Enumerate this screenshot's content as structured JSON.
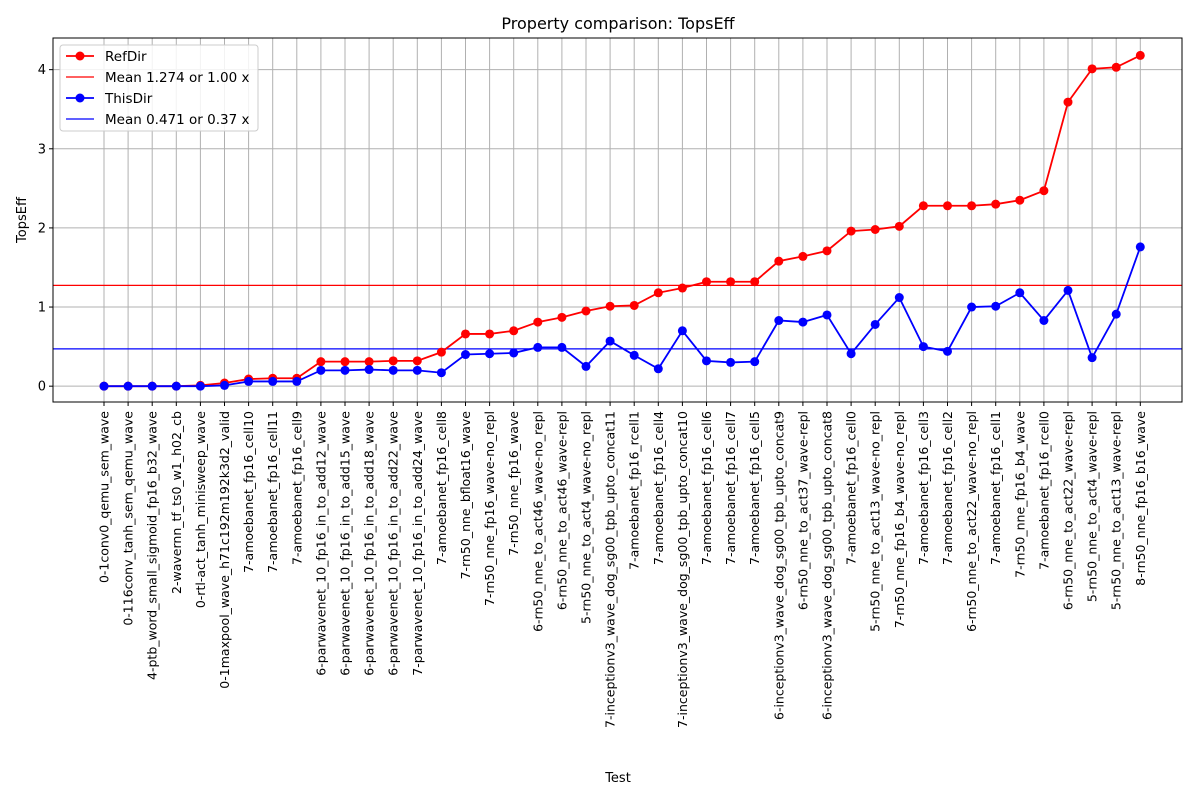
{
  "chart_data": {
    "type": "line",
    "title": "Property comparison:  TopsEff",
    "xlabel": "Test",
    "ylabel": "TopsEff",
    "ylim": [
      -0.2,
      4.4
    ],
    "yticks": [
      0,
      1,
      2,
      3,
      4
    ],
    "grid": true,
    "legend_position": "top-left",
    "categories": [
      "0-1conv0_qemu_sem_wave",
      "0-116conv_tanh_sem_qemu_wave",
      "4-ptb_word_small_sigmoid_fp16_b32_wave",
      "2-wavernn_tf_ts0_w1_h02_cb",
      "0-rtl-act_tanh_minisweep_wave",
      "0-1maxpool_wave_h71c192m192k3d2_valid",
      "7-amoebanet_fp16_cell10",
      "7-amoebanet_fp16_cell11",
      "7-amoebanet_fp16_cell9",
      "6-parwavenet_10_fp16_in_to_add12_wave",
      "6-parwavenet_10_fp16_in_to_add15_wave",
      "6-parwavenet_10_fp16_in_to_add18_wave",
      "6-parwavenet_10_fp16_in_to_add22_wave",
      "7-parwavenet_10_fp16_in_to_add24_wave",
      "7-amoebanet_fp16_cell8",
      "7-rn50_nne_bfloat16_wave",
      "7-rn50_nne_fp16_wave-no_repl",
      "7-rn50_nne_fp16_wave",
      "6-rn50_nne_to_act46_wave-no_repl",
      "6-rn50_nne_to_act46_wave-repl",
      "5-rn50_nne_to_act4_wave-no_repl",
      "7-inceptionv3_wave_dog_sg00_tpb_upto_concat11",
      "7-amoebanet_fp16_rcell1",
      "7-amoebanet_fp16_cell4",
      "7-inceptionv3_wave_dog_sg00_tpb_upto_concat10",
      "7-amoebanet_fp16_cell6",
      "7-amoebanet_fp16_cell7",
      "7-amoebanet_fp16_cell5",
      "6-inceptionv3_wave_dog_sg00_tpb_upto_concat9",
      "6-rn50_nne_to_act37_wave-repl",
      "6-inceptionv3_wave_dog_sg00_tpb_upto_concat8",
      "7-amoebanet_fp16_cell0",
      "5-rn50_nne_to_act13_wave-no_repl",
      "7-rn50_nne_fp16_b4_wave-no_repl",
      "7-amoebanet_fp16_cell3",
      "7-amoebanet_fp16_cell2",
      "6-rn50_nne_to_act22_wave-no_repl",
      "7-amoebanet_fp16_cell1",
      "7-rn50_nne_fp16_b4_wave",
      "7-amoebanet_fp16_rcell0",
      "6-rn50_nne_to_act22_wave-repl",
      "5-rn50_nne_to_act4_wave-repl",
      "5-rn50_nne_to_act13_wave-repl",
      "8-rn50_nne_fp16_b16_wave"
    ],
    "series": [
      {
        "name": "RefDir",
        "color": "#ff0000",
        "values": [
          0.0,
          0.0,
          0.0,
          0.0,
          0.01,
          0.04,
          0.09,
          0.1,
          0.1,
          0.31,
          0.31,
          0.31,
          0.32,
          0.32,
          0.43,
          0.66,
          0.66,
          0.7,
          0.81,
          0.87,
          0.95,
          1.01,
          1.02,
          1.18,
          1.24,
          1.32,
          1.32,
          1.32,
          1.58,
          1.64,
          1.71,
          1.96,
          1.98,
          2.02,
          2.28,
          2.28,
          2.28,
          2.3,
          2.35,
          2.47,
          3.59,
          4.01,
          4.03,
          4.18
        ]
      },
      {
        "name": "ThisDir",
        "color": "#0000ff",
        "values": [
          0.0,
          0.0,
          0.0,
          0.0,
          0.0,
          0.01,
          0.06,
          0.06,
          0.06,
          0.2,
          0.2,
          0.21,
          0.2,
          0.2,
          0.17,
          0.4,
          0.41,
          0.42,
          0.49,
          0.49,
          0.25,
          0.57,
          0.39,
          0.22,
          0.7,
          0.32,
          0.3,
          0.31,
          0.83,
          0.81,
          0.9,
          0.41,
          0.78,
          1.12,
          0.5,
          0.44,
          1.0,
          1.01,
          1.18,
          0.83,
          1.21,
          0.36,
          0.91,
          1.76
        ]
      }
    ],
    "mean_lines": [
      {
        "label": "Mean 1.274 or 1.00 x",
        "value": 1.274,
        "color": "#ff0000"
      },
      {
        "label": "Mean 0.471 or 0.37 x",
        "value": 0.471,
        "color": "#0000ff"
      }
    ]
  }
}
